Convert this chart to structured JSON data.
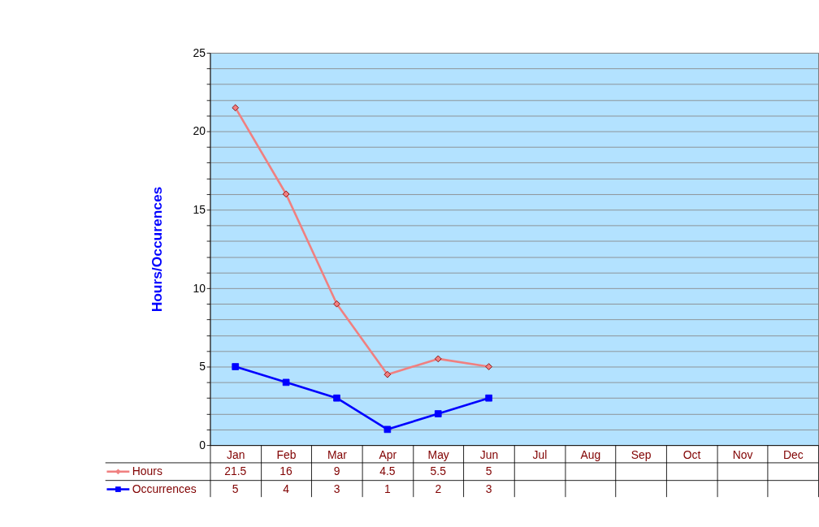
{
  "chart_data": {
    "type": "line",
    "ylabel": "Hours/Occurences",
    "categories": [
      "Jan",
      "Feb",
      "Mar",
      "Apr",
      "May",
      "Jun",
      "Jul",
      "Aug",
      "Sep",
      "Oct",
      "Nov",
      "Dec"
    ],
    "series": [
      {
        "name": "Hours",
        "color": "#f08080",
        "marker": "diamond",
        "values": [
          21.5,
          16,
          9,
          4.5,
          5.5,
          5,
          null,
          null,
          null,
          null,
          null,
          null
        ]
      },
      {
        "name": "Occurrences",
        "color": "#0000ff",
        "marker": "square",
        "values": [
          5,
          4,
          3,
          1,
          2,
          3,
          null,
          null,
          null,
          null,
          null,
          null
        ]
      }
    ],
    "ylim": [
      0,
      25
    ],
    "yticks": [
      0,
      {
        "value": 1,
        "label": null
      },
      {
        "value": 2,
        "label": null
      },
      {
        "value": 3,
        "label": null
      },
      {
        "value": 4,
        "label": null
      },
      5,
      {
        "value": 6,
        "label": null
      },
      {
        "value": 7,
        "label": null
      },
      {
        "value": 8,
        "label": null
      },
      {
        "value": 9,
        "label": null
      },
      10,
      {
        "value": 11,
        "label": null
      },
      {
        "value": 12,
        "label": null
      },
      {
        "value": 13,
        "label": null
      },
      {
        "value": 14,
        "label": null
      },
      15,
      {
        "value": 16,
        "label": null
      },
      {
        "value": 17,
        "label": null
      },
      {
        "value": 18,
        "label": null
      },
      {
        "value": 19,
        "label": null
      },
      20,
      {
        "value": 21,
        "label": null
      },
      {
        "value": 22,
        "label": null
      },
      {
        "value": 23,
        "label": null
      },
      {
        "value": 24,
        "label": null
      },
      25
    ],
    "grid": "y",
    "legend": "bottom left",
    "data_labels": true
  }
}
